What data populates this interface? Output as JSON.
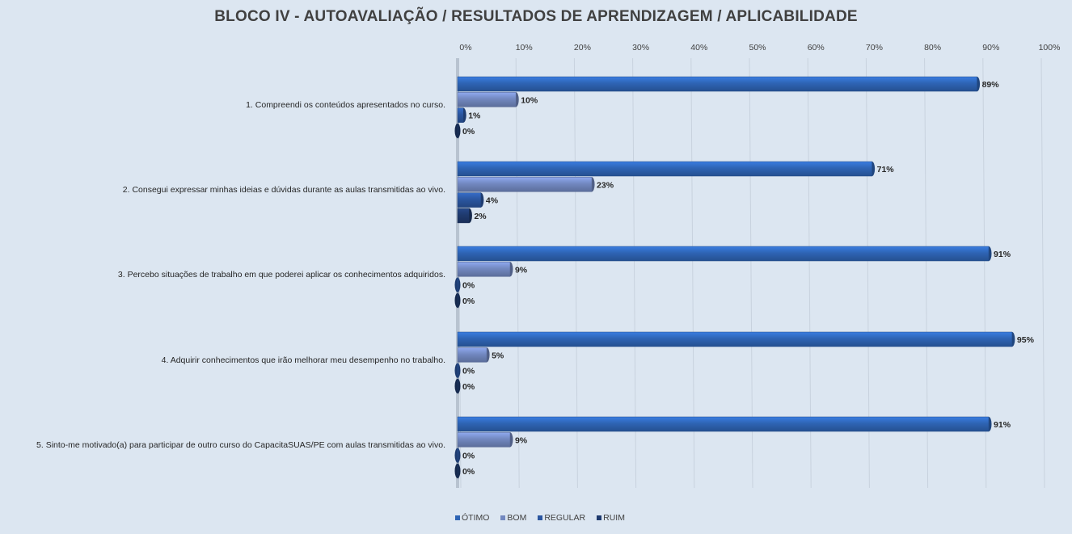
{
  "chart_data": {
    "type": "bar",
    "orientation": "horizontal",
    "title": "BLOCO IV - AUTOAVALIAÇÃO / RESULTADOS  DE APRENDIZAGEM  / APLICABILIDADE",
    "xlim": [
      0,
      100
    ],
    "x_ticks": [
      "0%",
      "10%",
      "20%",
      "30%",
      "40%",
      "50%",
      "60%",
      "70%",
      "80%",
      "90%",
      "100%"
    ],
    "categories": [
      "1. Compreendi os conteúdos apresentados no curso.",
      "2. Consegui expressar minhas ideias e dúvidas durante as aulas transmitidas ao vivo.",
      "3. Percebo situações de trabalho em que poderei aplicar os conhecimentos adquiridos.",
      "4. Adquirir conhecimentos que irão melhorar meu desempenho no trabalho.",
      "5. Sinto-me motivado(a) para participar de outro curso do CapacitaSUAS/PE com aulas transmitidas ao vivo."
    ],
    "series": [
      {
        "name": "ÓTIMO",
        "color": "#2e64b4",
        "values": [
          89,
          71,
          91,
          95,
          91
        ],
        "labels": [
          "89%",
          "71%",
          "91%",
          "95%",
          "91%"
        ]
      },
      {
        "name": "BOM",
        "color": "#7288c0",
        "values": [
          10,
          23,
          9,
          5,
          9
        ],
        "labels": [
          "10%",
          "23%",
          "9%",
          "5%",
          "9%"
        ]
      },
      {
        "name": "REGULAR",
        "color": "#2b56a0",
        "values": [
          1,
          4,
          0,
          0,
          0
        ],
        "labels": [
          "1%",
          "4%",
          "0%",
          "0%",
          "0%"
        ]
      },
      {
        "name": "RUIM",
        "color": "#1f3a6e",
        "values": [
          0,
          2,
          0,
          0,
          0
        ],
        "labels": [
          "0%",
          "2%",
          "0%",
          "0%",
          "0%"
        ]
      }
    ],
    "legend_position": "bottom",
    "grid": true
  }
}
